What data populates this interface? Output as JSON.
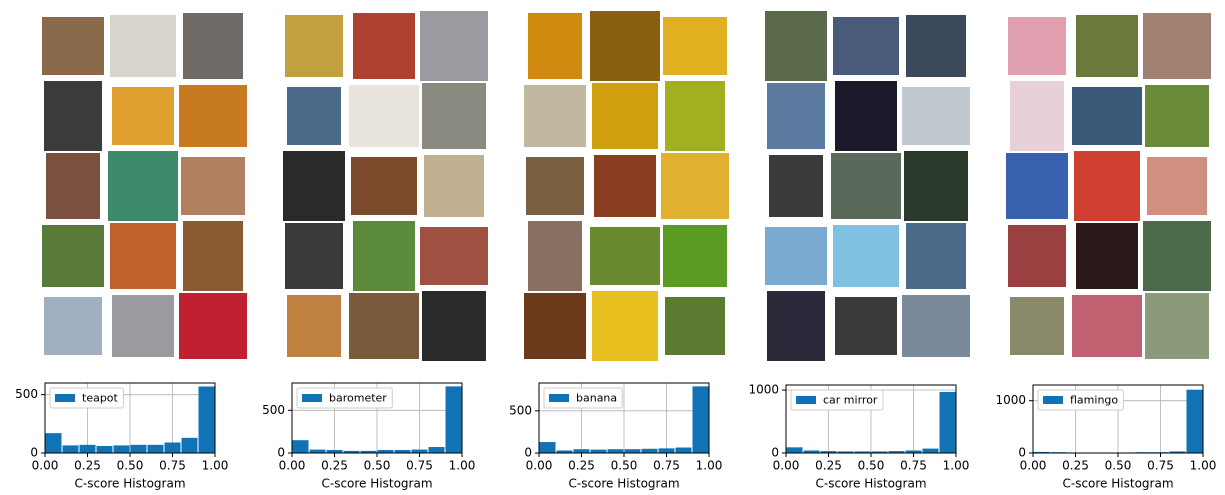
{
  "chart_data": [
    {
      "type": "histogram",
      "series": [
        {
          "name": "teapot",
          "color": "#0f73b5",
          "values": [
            170,
            65,
            70,
            60,
            65,
            70,
            70,
            90,
            130,
            570
          ]
        }
      ],
      "bins": [
        0,
        0.1,
        0.2,
        0.3,
        0.4,
        0.5,
        0.6,
        0.7,
        0.8,
        0.9,
        1.0
      ],
      "xlabel": "C-score Histogram",
      "xlim": [
        0,
        1
      ],
      "xticks": [
        {
          "value": 0,
          "label": "0.00"
        },
        {
          "value": 0.25,
          "label": "0.25"
        },
        {
          "value": 0.5,
          "label": "0.50"
        },
        {
          "value": 0.75,
          "label": "0.75"
        },
        {
          "value": 1,
          "label": "1.00"
        }
      ],
      "ylim": [
        0,
        600
      ],
      "yticks": [
        0,
        500
      ],
      "grid": true,
      "legend": "upper left"
    },
    {
      "type": "histogram",
      "series": [
        {
          "name": "barometer",
          "color": "#0f73b5",
          "values": [
            150,
            40,
            35,
            25,
            25,
            35,
            35,
            40,
            70,
            780
          ]
        }
      ],
      "bins": [
        0,
        0.1,
        0.2,
        0.3,
        0.4,
        0.5,
        0.6,
        0.7,
        0.8,
        0.9,
        1.0
      ],
      "xlabel": "C-score Histogram",
      "xlim": [
        0,
        1
      ],
      "xticks": [
        {
          "value": 0,
          "label": "0.00"
        },
        {
          "value": 0.25,
          "label": "0.25"
        },
        {
          "value": 0.5,
          "label": "0.50"
        },
        {
          "value": 0.75,
          "label": "0.75"
        },
        {
          "value": 1,
          "label": "1.00"
        }
      ],
      "ylim": [
        0,
        820
      ],
      "yticks": [
        0,
        500
      ],
      "grid": true,
      "legend": "upper left"
    },
    {
      "type": "histogram",
      "series": [
        {
          "name": "banana",
          "color": "#0f73b5",
          "values": [
            130,
            30,
            45,
            40,
            45,
            45,
            50,
            55,
            65,
            790
          ]
        }
      ],
      "bins": [
        0,
        0.1,
        0.2,
        0.3,
        0.4,
        0.5,
        0.6,
        0.7,
        0.8,
        0.9,
        1.0
      ],
      "xlabel": "C-score Histogram",
      "xlim": [
        0,
        1
      ],
      "xticks": [
        {
          "value": 0,
          "label": "0.00"
        },
        {
          "value": 0.25,
          "label": "0.25"
        },
        {
          "value": 0.5,
          "label": "0.50"
        },
        {
          "value": 0.75,
          "label": "0.75"
        },
        {
          "value": 1,
          "label": "1.00"
        }
      ],
      "ylim": [
        0,
        830
      ],
      "yticks": [
        0,
        500
      ],
      "grid": true,
      "legend": "upper left"
    },
    {
      "type": "histogram",
      "series": [
        {
          "name": "car mirror",
          "color": "#0f73b5",
          "values": [
            90,
            40,
            30,
            25,
            25,
            25,
            30,
            40,
            70,
            970
          ]
        }
      ],
      "bins": [
        0,
        0.1,
        0.2,
        0.3,
        0.4,
        0.5,
        0.6,
        0.7,
        0.8,
        0.9,
        1.0
      ],
      "xlabel": "C-score Histogram",
      "xlim": [
        0,
        1
      ],
      "xticks": [
        {
          "value": 0,
          "label": "0.00"
        },
        {
          "value": 0.25,
          "label": "0.25"
        },
        {
          "value": 0.5,
          "label": "0.50"
        },
        {
          "value": 0.75,
          "label": "0.75"
        },
        {
          "value": 1,
          "label": "1.00"
        }
      ],
      "ylim": [
        0,
        1080
      ],
      "yticks": [
        0,
        1000
      ],
      "grid": true,
      "legend": "upper left"
    },
    {
      "type": "histogram",
      "series": [
        {
          "name": "flamingo",
          "color": "#0f73b5",
          "values": [
            20,
            15,
            10,
            10,
            10,
            10,
            15,
            15,
            30,
            1210
          ]
        }
      ],
      "bins": [
        0,
        0.1,
        0.2,
        0.3,
        0.4,
        0.5,
        0.6,
        0.7,
        0.8,
        0.9,
        1.0
      ],
      "xlabel": "C-score Histogram",
      "xlim": [
        0,
        1
      ],
      "xticks": [
        {
          "value": 0,
          "label": "0.00"
        },
        {
          "value": 0.25,
          "label": "0.25"
        },
        {
          "value": 0.5,
          "label": "0.50"
        },
        {
          "value": 0.75,
          "label": "0.75"
        },
        {
          "value": 1,
          "label": "1.00"
        }
      ],
      "ylim": [
        0,
        1300
      ],
      "yticks": [
        0,
        1000
      ],
      "grid": true,
      "legend": "upper left"
    }
  ]
}
